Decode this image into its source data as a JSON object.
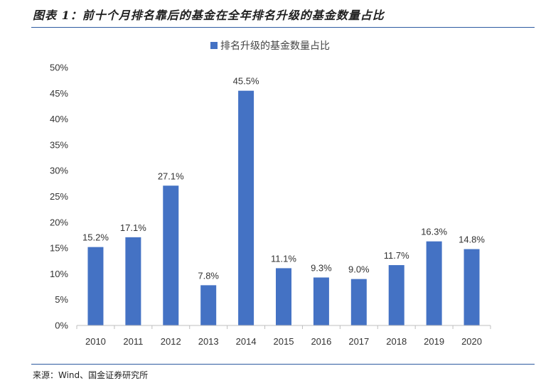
{
  "caption": "图表 1：前十个月排名靠后的基金在全年排名升级的基金数量占比",
  "source": "来源：Wind、国金证券研究所",
  "colors": {
    "bar": "#4472c4",
    "rule": "#2c5aa0",
    "axis": "#bfbfbf"
  },
  "chart_data": {
    "type": "bar",
    "categories": [
      "2010",
      "2011",
      "2012",
      "2013",
      "2014",
      "2015",
      "2016",
      "2017",
      "2018",
      "2019",
      "2020"
    ],
    "series": [
      {
        "name": "排名升级的基金数量占比",
        "values": [
          15.2,
          17.1,
          27.1,
          7.8,
          45.5,
          11.1,
          9.3,
          9.0,
          11.7,
          16.3,
          14.8
        ],
        "labels": [
          "15.2%",
          "17.1%",
          "27.1%",
          "7.8%",
          "45.5%",
          "11.1%",
          "9.3%",
          "9.0%",
          "11.7%",
          "16.3%",
          "14.8%"
        ]
      }
    ],
    "ylim": [
      0,
      50
    ],
    "yticks": [
      "0%",
      "5%",
      "10%",
      "15%",
      "20%",
      "25%",
      "30%",
      "35%",
      "40%",
      "45%",
      "50%"
    ],
    "legend_position": "top-center",
    "grid": false
  }
}
